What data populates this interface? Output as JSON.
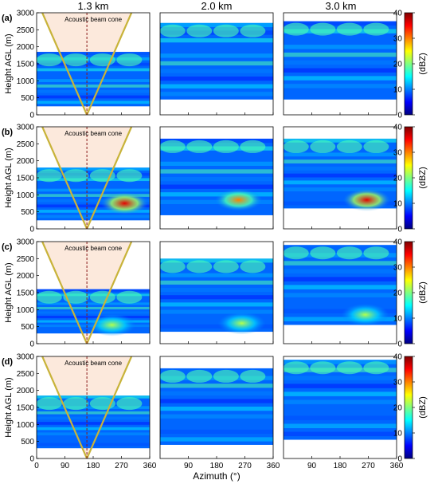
{
  "chart_data": {
    "type": "heatmap",
    "columns": [
      "1.3 km",
      "2.0 km",
      "3.0 km"
    ],
    "rows": [
      "(a)",
      "(b)",
      "(c)",
      "(d)"
    ],
    "xlabel": "Azimuth (°)",
    "ylabel": "Height AGL (m)",
    "xlim": [
      0,
      360
    ],
    "ylim": [
      0,
      3000
    ],
    "x_ticks_first_col": [
      "0",
      "90",
      "180",
      "270",
      "360"
    ],
    "x_ticks_other_cols": [
      "90",
      "180",
      "270",
      "360"
    ],
    "y_ticks": [
      "0",
      "500",
      "1000",
      "1500",
      "2000",
      "2500",
      "3000"
    ],
    "annotation": "Acoustic beam cone",
    "colorbar": {
      "label": "(dBZ)",
      "range": [
        0,
        40
      ],
      "ticks": [
        "0",
        "10",
        "20",
        "30",
        "40"
      ],
      "colors": [
        "#00007f",
        "#0000ff",
        "#0080ff",
        "#00ffff",
        "#80ff80",
        "#ffff00",
        "#ff8000",
        "#ff0000",
        "#7f0000"
      ]
    },
    "cone_apex_azimuth": 160,
    "panels": [
      [
        {
          "data_top": 1850,
          "data_bottom": 250,
          "hotspot": null
        },
        {
          "data_top": 2700,
          "data_bottom": 450,
          "hotspot": null
        },
        {
          "data_top": 2750,
          "data_bottom": 450,
          "hotspot": null
        }
      ],
      [
        {
          "data_top": 1800,
          "data_bottom": 250,
          "hotspot": {
            "az": 280,
            "h": 750,
            "dbz": 36
          }
        },
        {
          "data_top": 2650,
          "data_bottom": 400,
          "hotspot": {
            "az": 250,
            "h": 850,
            "dbz": 30
          }
        },
        {
          "data_top": 2650,
          "data_bottom": 600,
          "hotspot": {
            "az": 265,
            "h": 850,
            "dbz": 36
          }
        }
      ],
      [
        {
          "data_top": 1600,
          "data_bottom": 300,
          "hotspot": {
            "az": 240,
            "h": 550,
            "dbz": 22
          }
        },
        {
          "data_top": 2500,
          "data_bottom": 350,
          "hotspot": {
            "az": 260,
            "h": 600,
            "dbz": 22
          }
        },
        {
          "data_top": 2900,
          "data_bottom": 550,
          "hotspot": {
            "az": 260,
            "h": 850,
            "dbz": 22
          }
        }
      ],
      [
        {
          "data_top": 1850,
          "data_bottom": 300,
          "hotspot": null
        },
        {
          "data_top": 2650,
          "data_bottom": 400,
          "hotspot": null
        },
        {
          "data_top": 2900,
          "data_bottom": 550,
          "hotspot": null
        }
      ]
    ]
  }
}
